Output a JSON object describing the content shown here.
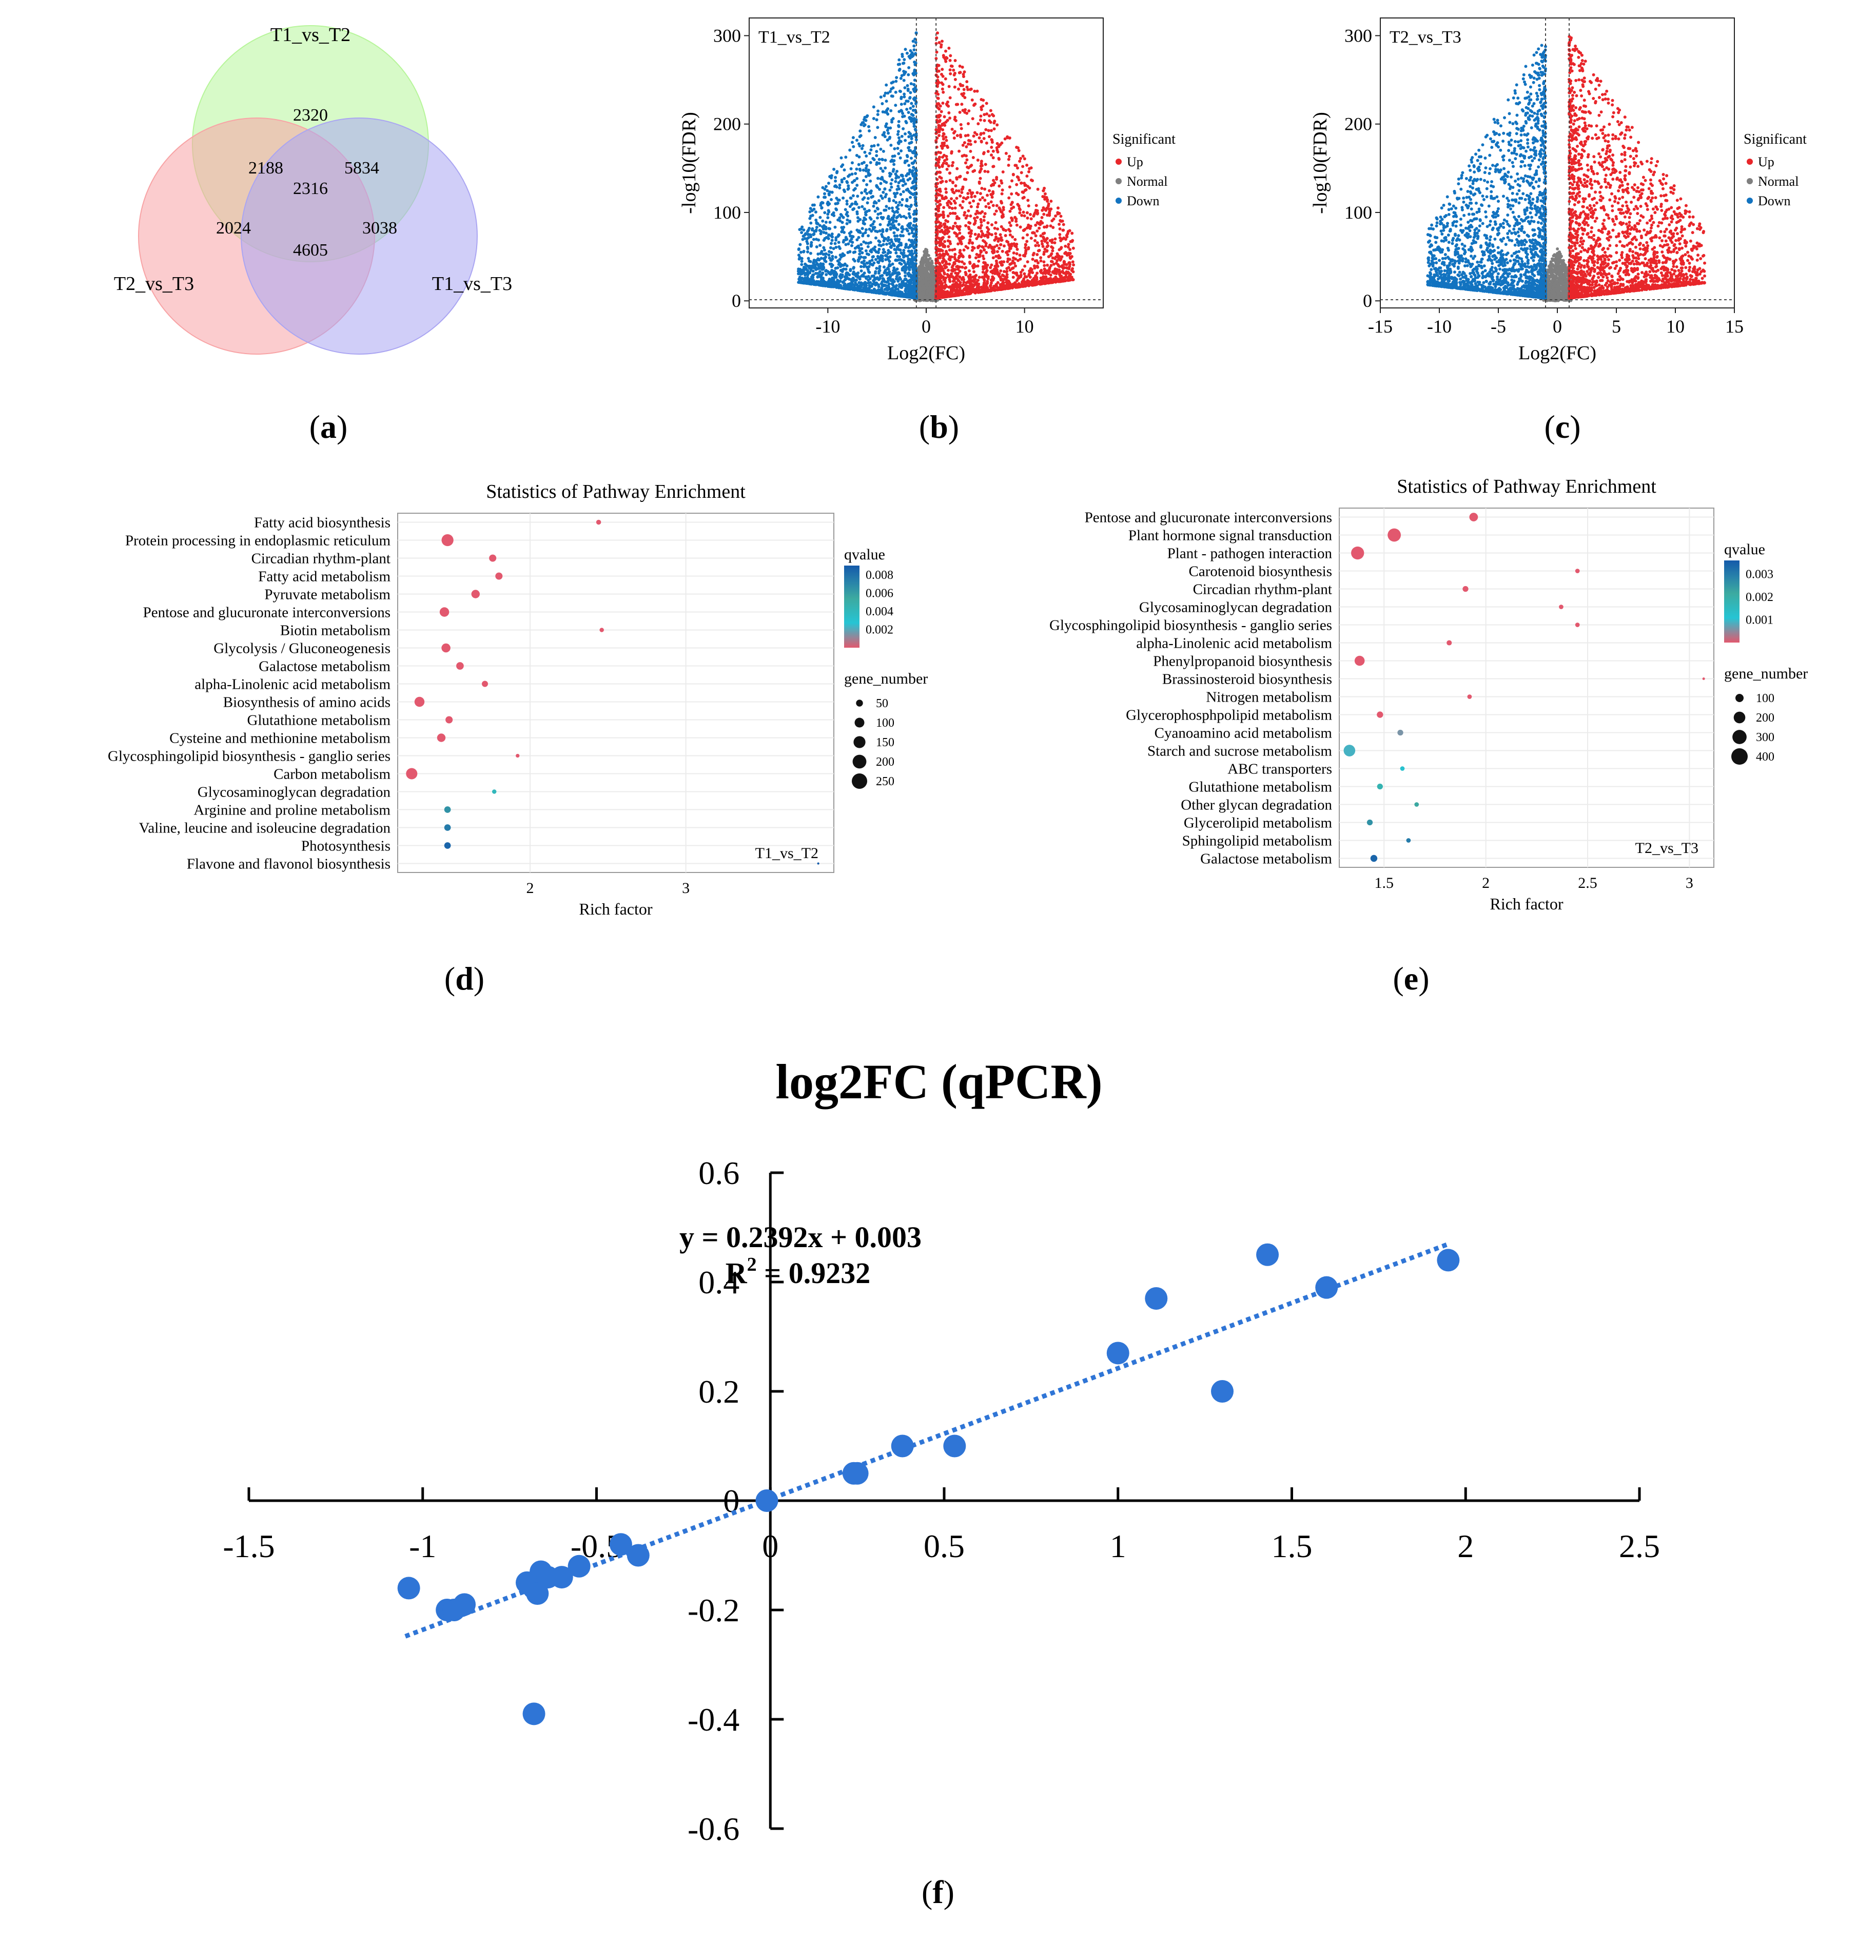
{
  "captions": {
    "a": "a",
    "b": "b",
    "c": "c",
    "d": "d",
    "e": "e",
    "f": "f"
  },
  "chart_data": [
    {
      "panel": "a",
      "type": "venn",
      "sets": [
        "T1_vs_T2",
        "T2_vs_T3",
        "T1_vs_T3"
      ],
      "colors": [
        "#b7f59a",
        "#f8a3a5",
        "#aaa5f2"
      ],
      "regions": {
        "T1_vs_T2_only": 2320,
        "T2_vs_T3_only": 2024,
        "T1_vs_T3_only": 3038,
        "T1_vs_T2_and_T2_vs_T3": 2188,
        "T1_vs_T2_and_T1_vs_T3": 5834,
        "T2_vs_T3_and_T1_vs_T3": 4605,
        "all_three": 2316
      }
    },
    {
      "panel": "b",
      "type": "scatter",
      "label": "T1_vs_T2",
      "xlabel": "Log2(FC)",
      "ylabel": "-log10(FDR)",
      "xlim": [
        -18,
        18
      ],
      "ylim": [
        -8,
        320
      ],
      "xticks": [
        -10,
        0,
        10
      ],
      "yticks": [
        0,
        100,
        200,
        300
      ],
      "thresholds": {
        "x": [
          -1,
          1
        ],
        "y": 1.3
      },
      "legend": {
        "title": "Significant",
        "items": [
          {
            "name": "Up",
            "color": "#e8262a"
          },
          {
            "name": "Normal",
            "color": "#7f7f7f"
          },
          {
            "name": "Down",
            "color": "#1273c0"
          }
        ]
      },
      "extent": {
        "up_max_x": 15,
        "down_min_x": -13,
        "y_max": 305
      }
    },
    {
      "panel": "c",
      "type": "scatter",
      "label": "T2_vs_T3",
      "xlabel": "Log2(FC)",
      "ylabel": "-log10(FDR)",
      "xlim": [
        -15,
        15
      ],
      "ylim": [
        -8,
        320
      ],
      "xticks": [
        -15,
        -10,
        -5,
        0,
        5,
        10,
        15
      ],
      "yticks": [
        0,
        100,
        200,
        300
      ],
      "thresholds": {
        "x": [
          -1,
          1
        ],
        "y": 1.3
      },
      "legend": {
        "title": "Significant",
        "items": [
          {
            "name": "Up",
            "color": "#e8262a"
          },
          {
            "name": "Normal",
            "color": "#7f7f7f"
          },
          {
            "name": "Down",
            "color": "#1273c0"
          }
        ]
      },
      "extent": {
        "up_max_x": 12.5,
        "down_min_x": -11,
        "y_max": 300
      }
    },
    {
      "panel": "d",
      "type": "scatter",
      "title": "Statistics of Pathway Enrichment",
      "label": "T1_vs_T2",
      "xlabel": "Rich factor",
      "xlim": [
        1.15,
        3.95
      ],
      "xticks": [
        2,
        3
      ],
      "legend": {
        "color_title": "qvalue",
        "color_ticks": [
          0.008,
          0.006,
          0.004,
          0.002
        ],
        "color_range": [
          0,
          0.009
        ],
        "size_title": "gene_number",
        "size_ticks": [
          50,
          100,
          150,
          200,
          250
        ]
      },
      "pathways": [
        "Fatty acid biosynthesis",
        "Protein processing in endoplasmic reticulum",
        "Circadian rhythm-plant",
        "Fatty acid metabolism",
        "Pyruvate metabolism",
        "Pentose and glucuronate interconversions",
        "Biotin metabolism",
        "Glycolysis / Gluconeogenesis",
        "Galactose metabolism",
        "alpha-Linolenic acid metabolism",
        "Biosynthesis of amino acids",
        "Glutathione metabolism",
        "Cysteine and methionine metabolism",
        "Glycosphingolipid biosynthesis - ganglio series",
        "Carbon metabolism",
        "Glycosaminoglycan degradation",
        "Arginine and proline metabolism",
        "Valine, leucine and isoleucine degradation",
        "Photosynthesis",
        "Flavone and flavonol biosynthesis"
      ],
      "rich_factor": [
        2.44,
        1.47,
        1.76,
        1.8,
        1.65,
        1.45,
        2.46,
        1.46,
        1.55,
        1.71,
        1.29,
        1.48,
        1.43,
        1.92,
        1.24,
        1.77,
        1.47,
        1.47,
        1.47,
        3.85
      ],
      "qvalue": [
        0,
        0,
        0,
        0,
        0,
        0,
        0,
        0,
        0,
        0,
        0,
        0,
        0,
        0,
        0,
        0.004,
        0.0065,
        0.0075,
        0.0085,
        0.009
      ],
      "gene_number": [
        25,
        150,
        55,
        55,
        75,
        95,
        20,
        85,
        60,
        40,
        105,
        55,
        75,
        15,
        135,
        20,
        45,
        45,
        45,
        5
      ]
    },
    {
      "panel": "e",
      "type": "scatter",
      "title": "Statistics of Pathway Enrichment",
      "label": "T2_vs_T3",
      "xlabel": "Rich factor",
      "xlim": [
        1.28,
        3.12
      ],
      "xticks": [
        1.5,
        2.0,
        2.5,
        3.0
      ],
      "legend": {
        "color_title": "qvalue",
        "color_ticks": [
          0.003,
          0.002,
          0.001
        ],
        "color_range": [
          0,
          0.0036
        ],
        "size_title": "gene_number",
        "size_ticks": [
          100,
          200,
          300,
          400
        ]
      },
      "pathways": [
        "Pentose and glucuronate interconversions",
        "Plant hormone signal transduction",
        "Plant - pathogen interaction",
        "Carotenoid biosynthesis",
        "Circadian rhythm-plant",
        "Glycosaminoglycan degradation",
        "Glycosphingolipid biosynthesis - ganglio series",
        "alpha-Linolenic acid metabolism",
        "Phenylpropanoid biosynthesis",
        "Brassinosteroid biosynthesis",
        "Nitrogen metabolism",
        "Glycerophosphpolipid metabolism",
        "Cyanoamino acid metabolism",
        "Starch and sucrose metabolism",
        "ABC transporters",
        "Glutathione metabolism",
        "Other glycan degradation",
        "Glycerolipid metabolism",
        "Sphingolipid metabolism",
        "Galactose metabolism"
      ],
      "rich_factor": [
        1.94,
        1.55,
        1.37,
        2.45,
        1.9,
        2.37,
        2.45,
        1.82,
        1.38,
        3.07,
        1.92,
        1.48,
        1.58,
        1.33,
        1.59,
        1.48,
        1.66,
        1.43,
        1.62,
        1.45
      ],
      "qvalue": [
        0,
        0,
        0,
        0,
        0,
        0,
        0,
        0,
        0,
        0,
        0,
        0,
        0.0006,
        0.0009,
        0.0012,
        0.0018,
        0.0022,
        0.0026,
        0.003,
        0.0034
      ],
      "gene_number": [
        110,
        260,
        250,
        30,
        50,
        30,
        30,
        40,
        150,
        10,
        30,
        60,
        50,
        200,
        30,
        50,
        30,
        50,
        30,
        70
      ]
    },
    {
      "panel": "f",
      "type": "scatter",
      "title": "log2FC (qPCR)",
      "equation": "y = 0.2392x + 0.003",
      "r2_label": "R",
      "r2_exp": "2",
      "r2_value": " = 0.9232",
      "xlim": [
        -1.5,
        2.5
      ],
      "ylim": [
        -0.6,
        0.6
      ],
      "xticks": [
        -1.5,
        -1,
        -0.5,
        0,
        0.5,
        1,
        1.5,
        2,
        2.5
      ],
      "yticks": [
        0.6,
        0.4,
        0.2,
        0,
        -0.2,
        -0.4,
        -0.6
      ],
      "trend_slope": 0.2392,
      "trend_intercept": 0.003,
      "trend_range": [
        -1.05,
        1.95
      ],
      "point_color": "#2f75d6",
      "points": [
        [
          -1.04,
          -0.16
        ],
        [
          -0.93,
          -0.2
        ],
        [
          -0.91,
          -0.2
        ],
        [
          -0.88,
          -0.19
        ],
        [
          -0.7,
          -0.15
        ],
        [
          -0.68,
          -0.16
        ],
        [
          -0.67,
          -0.17
        ],
        [
          -0.66,
          -0.13
        ],
        [
          -0.64,
          -0.14
        ],
        [
          -0.6,
          -0.14
        ],
        [
          -0.55,
          -0.12
        ],
        [
          -0.43,
          -0.08
        ],
        [
          -0.38,
          -0.1
        ],
        [
          -0.68,
          -0.39
        ],
        [
          -0.01,
          0.0
        ],
        [
          0.24,
          0.05
        ],
        [
          0.25,
          0.05
        ],
        [
          0.38,
          0.1
        ],
        [
          0.53,
          0.1
        ],
        [
          1.0,
          0.27
        ],
        [
          1.11,
          0.37
        ],
        [
          1.3,
          0.2
        ],
        [
          1.43,
          0.45
        ],
        [
          1.6,
          0.39
        ],
        [
          1.95,
          0.44
        ]
      ]
    }
  ]
}
